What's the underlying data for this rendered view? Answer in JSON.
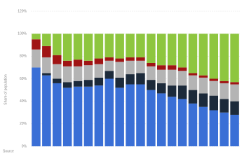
{
  "chart_data": {
    "type": "stacked_bar",
    "y_label": "Share of population",
    "source": "Source",
    "categories": [
      null,
      null,
      null,
      null,
      null,
      null,
      null,
      null,
      null,
      null,
      null,
      null,
      null,
      null,
      null,
      null,
      null,
      null,
      null,
      null
    ],
    "series": [
      {
        "color": "#3a6fd6",
        "values": [
          70,
          63,
          56,
          52,
          53,
          53,
          54,
          60,
          52,
          55,
          55,
          50,
          47,
          44,
          42,
          38,
          35,
          32,
          30,
          28
        ]
      },
      {
        "color": "#1c2a3a",
        "values": [
          0,
          2,
          4,
          5,
          5,
          6,
          7,
          7,
          9,
          9,
          10,
          9,
          9,
          10,
          12,
          12,
          12,
          13,
          12,
          12
        ]
      },
      {
        "color": "#b4b4b4",
        "values": [
          16,
          14,
          13,
          14,
          13,
          13,
          12,
          9,
          14,
          12,
          11,
          12,
          12,
          14,
          13,
          13,
          14,
          13,
          14,
          15
        ]
      },
      {
        "color": "#a01414",
        "values": [
          9,
          10,
          8,
          5,
          6,
          4,
          5,
          3,
          3,
          3,
          3,
          3,
          4,
          4,
          3,
          2,
          2,
          2,
          2,
          2
        ]
      },
      {
        "color": "#8ec63f",
        "values": [
          5,
          11,
          19,
          24,
          23,
          24,
          22,
          21,
          22,
          21,
          21,
          26,
          28,
          28,
          30,
          35,
          37,
          40,
          42,
          43
        ]
      }
    ],
    "ylim": [
      0,
      120
    ],
    "yticks": [
      {
        "value": 0,
        "label": "0%"
      },
      {
        "value": 20,
        "label": "20%"
      },
      {
        "value": 40,
        "label": "40%"
      },
      {
        "value": 60,
        "label": "60%"
      },
      {
        "value": 80,
        "label": "80%"
      },
      {
        "value": 100,
        "label": "100%"
      },
      {
        "value": 120,
        "label": "120%"
      }
    ],
    "grid": true
  }
}
